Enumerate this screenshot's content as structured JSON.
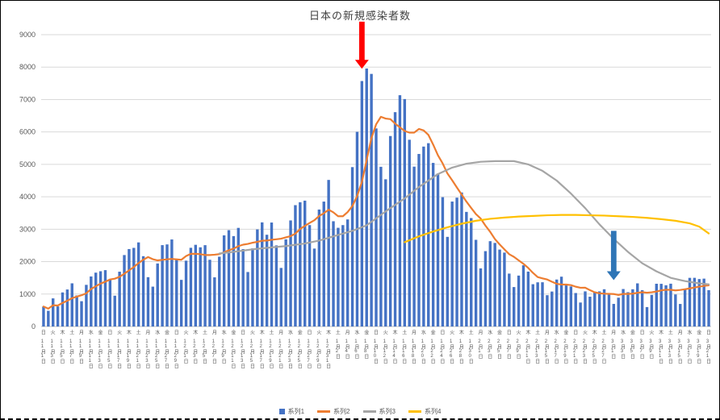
{
  "chart_data": {
    "type": "bar",
    "combo": "bar + 3 line series",
    "title": "日本の新規感染者数",
    "y_axis": {
      "min": 0,
      "max": 9000,
      "step": 1000,
      "tick_labels": [
        "0",
        "1000",
        "2000",
        "3000",
        "4000",
        "5000",
        "6000",
        "7000",
        "8000",
        "9000"
      ],
      "grid": true
    },
    "x_tick_step": 2,
    "x_tick_labels": [
      "日 11月1日",
      "火 11月3日",
      "木 11月5日",
      "土 11月7日",
      "月 11月9日",
      "水 11月11日",
      "金 11月13日",
      "日 11月15日",
      "火 11月17日",
      "木 11月19日",
      "土 11月21日",
      "月 11月23日",
      "水 11月25日",
      "金 11月27日",
      "日 11月29日",
      "火 12月1日",
      "木 12月3日",
      "土 12月5日",
      "月 12月7日",
      "水 12月9日",
      "金 12月11日",
      "日 12月13日",
      "火 12月15日",
      "木 12月17日",
      "土 12月19日",
      "月 12月21日",
      "水 12月23日",
      "金 12月25日",
      "日 12月27日",
      "火 12月29日",
      "木 12月31日",
      "土 1月2日",
      "月 1月4日",
      "水 1月6日",
      "金 1月8日",
      "日 1月10日",
      "火 1月12日",
      "木 1月14日",
      "土 1月16日",
      "月 1月18日",
      "水 1月20日",
      "金 1月22日",
      "日 1月24日",
      "火 1月26日",
      "木 1月28日",
      "土 1月30日",
      "月 2月1日",
      "水 2月3日",
      "金 2月5日",
      "日 2月7日",
      "火 2月9日",
      "木 2月11日",
      "土 2月13日",
      "月 2月15日",
      "水 2月17日",
      "金 2月19日",
      "日 2月21日",
      "火 2月23日",
      "木 2月25日",
      "土 2月27日",
      "月 3月1日",
      "水 3月3日",
      "金 3月5日",
      "日 3月7日",
      "火 3月9日",
      "木 3月11日",
      "土 3月13日",
      "月 3月15日",
      "水 3月17日",
      "金 3月19日",
      "日 3月21日"
    ],
    "series": [
      {
        "name": "系列1",
        "type": "bar",
        "color": "#4472C4",
        "values": [
          614,
          484,
          867,
          620,
          1050,
          1141,
          1331,
          957,
          780,
          1284,
          1543,
          1660,
          1704,
          1738,
          1441,
          950,
          1690,
          2203,
          2388,
          2425,
          2593,
          2168,
          1521,
          1229,
          1944,
          2509,
          2531,
          2684,
          2066,
          1438,
          2030,
          2427,
          2519,
          2442,
          2508,
          2058,
          1516,
          2152,
          2811,
          2971,
          2788,
          3041,
          2387,
          1680,
          2410,
          2994,
          3211,
          2829,
          3206,
          2501,
          1806,
          2688,
          3271,
          3742,
          3832,
          3881,
          3127,
          2403,
          3607,
          3852,
          4520,
          3246,
          3044,
          3127,
          3302,
          4915,
          6004,
          7570,
          7957,
          7790,
          6108,
          4925,
          4540,
          5874,
          6610,
          7133,
          7014,
          5759,
          4930,
          5321,
          5549,
          5653,
          5045,
          4717,
          3988,
          2764,
          3853,
          3973,
          4133,
          3534,
          3344,
          2673,
          1792,
          2324,
          2631,
          2577,
          2372,
          2279,
          1631,
          1216,
          1570,
          1887,
          1693,
          1304,
          1362,
          1364,
          965,
          1078,
          1448,
          1536,
          1301,
          1234,
          1032,
          739,
          1083,
          919,
          1076,
          1083,
          1148,
          999,
          697,
          888,
          1155,
          1058,
          1148,
          1330,
          1121,
          599,
          973,
          1318,
          1316,
          1271,
          1320,
          989,
          695,
          1133,
          1500,
          1501,
          1463,
          1476,
          1121
        ]
      },
      {
        "name": "系列2",
        "type": "line",
        "color": "#ED7D31",
        "derivation": "7-day moving average of 系列1"
      },
      {
        "name": "系列3",
        "type": "line",
        "color": "#A5A5A5",
        "points": [
          [
            37,
            2250
          ],
          [
            41,
            2320
          ],
          [
            44,
            2380
          ],
          [
            48,
            2440
          ],
          [
            51,
            2480
          ],
          [
            55,
            2560
          ],
          [
            58,
            2650
          ],
          [
            61,
            2780
          ],
          [
            65,
            2950
          ],
          [
            68,
            3120
          ],
          [
            72,
            3550
          ],
          [
            76,
            3950
          ],
          [
            79,
            4300
          ],
          [
            83,
            4700
          ],
          [
            86,
            4900
          ],
          [
            89,
            5020
          ],
          [
            92,
            5080
          ],
          [
            95,
            5100
          ],
          [
            99,
            5100
          ],
          [
            102,
            5000
          ],
          [
            105,
            4800
          ],
          [
            108,
            4500
          ],
          [
            111,
            4100
          ],
          [
            114,
            3650
          ],
          [
            117,
            3150
          ],
          [
            120,
            2700
          ],
          [
            123,
            2300
          ],
          [
            126,
            1950
          ],
          [
            129,
            1700
          ],
          [
            132,
            1500
          ],
          [
            135,
            1400
          ],
          [
            138,
            1330
          ],
          [
            140,
            1300
          ]
        ]
      },
      {
        "name": "系列4",
        "type": "line",
        "color": "#FFC000",
        "points": [
          [
            76,
            2600
          ],
          [
            79,
            2780
          ],
          [
            82,
            2930
          ],
          [
            85,
            3060
          ],
          [
            88,
            3170
          ],
          [
            91,
            3260
          ],
          [
            94,
            3320
          ],
          [
            97,
            3360
          ],
          [
            100,
            3390
          ],
          [
            103,
            3410
          ],
          [
            106,
            3430
          ],
          [
            109,
            3440
          ],
          [
            112,
            3440
          ],
          [
            115,
            3430
          ],
          [
            118,
            3420
          ],
          [
            121,
            3400
          ],
          [
            124,
            3380
          ],
          [
            127,
            3350
          ],
          [
            130,
            3310
          ],
          [
            133,
            3260
          ],
          [
            136,
            3180
          ],
          [
            138,
            3080
          ],
          [
            140,
            2870
          ]
        ]
      }
    ],
    "annotations": [
      {
        "name": "red-down-arrow",
        "color": "#FF0000",
        "day_index": 67,
        "from_value": 9400,
        "to_value": 7950
      },
      {
        "name": "blue-down-arrow",
        "color": "#2E75B6",
        "day_index": 120,
        "from_value": 2950,
        "to_value": 1430
      }
    ],
    "legend": [
      {
        "label": "系列1",
        "color": "#4472C4",
        "marker": "square"
      },
      {
        "label": "系列2",
        "color": "#ED7D31",
        "marker": "line"
      },
      {
        "label": "系列3",
        "color": "#A5A5A5",
        "marker": "line"
      },
      {
        "label": "系列4",
        "color": "#FFC000",
        "marker": "line"
      }
    ],
    "colors": {
      "gridline": "#D9D9D9",
      "axis_line": "#BFBFBF",
      "axis_text": "#595959"
    }
  }
}
